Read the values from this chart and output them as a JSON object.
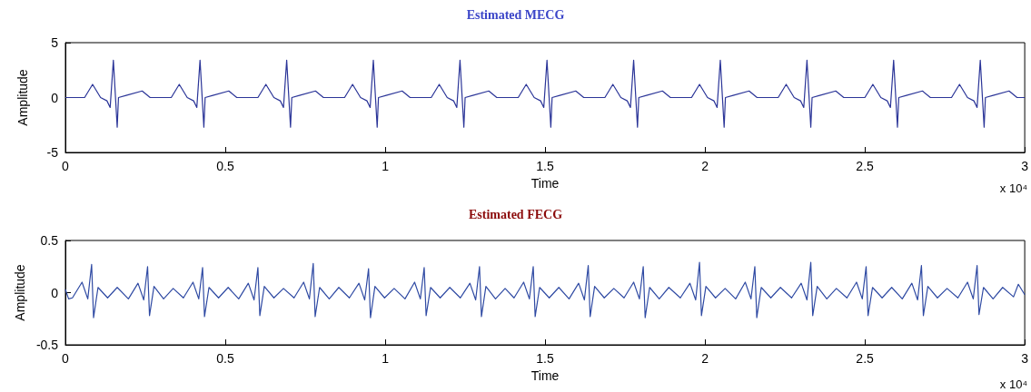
{
  "chart_data": [
    {
      "type": "line",
      "title": "Estimated MECG",
      "xlabel": "Time",
      "ylabel": "Amplitude",
      "annotations": [
        "x 10⁴"
      ],
      "xlim": [
        0,
        3
      ],
      "xticks": [
        0,
        0.5,
        1,
        1.5,
        2,
        2.5,
        3
      ],
      "ylim": [
        -5,
        5
      ],
      "yticks": [
        -5,
        0,
        5
      ],
      "grid": false,
      "marker": "none",
      "line_style": "solid",
      "series": [
        {
          "color": "#2b3598",
          "x": [
            0,
            0.06,
            0.085,
            0.11,
            0.13,
            0.14,
            0.15,
            0.162,
            0.166,
            0.19,
            0.24,
            0.265,
            0.331,
            0.356,
            0.381,
            0.401,
            0.411,
            0.421,
            0.433,
            0.437,
            0.461,
            0.511,
            0.536,
            0.602,
            0.627,
            0.652,
            0.672,
            0.682,
            0.692,
            0.704,
            0.708,
            0.732,
            0.782,
            0.807,
            0.873,
            0.898,
            0.923,
            0.943,
            0.953,
            0.963,
            0.975,
            0.979,
            1.003,
            1.053,
            1.078,
            1.144,
            1.169,
            1.194,
            1.214,
            1.224,
            1.234,
            1.246,
            1.25,
            1.274,
            1.324,
            1.349,
            1.416,
            1.441,
            1.466,
            1.486,
            1.496,
            1.506,
            1.518,
            1.522,
            1.546,
            1.596,
            1.621,
            1.687,
            1.712,
            1.737,
            1.757,
            1.767,
            1.777,
            1.789,
            1.793,
            1.817,
            1.867,
            1.892,
            1.958,
            1.983,
            2.008,
            2.028,
            2.038,
            2.048,
            2.06,
            2.064,
            2.088,
            2.138,
            2.163,
            2.229,
            2.254,
            2.279,
            2.299,
            2.309,
            2.319,
            2.331,
            2.335,
            2.359,
            2.409,
            2.434,
            2.5,
            2.525,
            2.55,
            2.57,
            2.58,
            2.59,
            2.602,
            2.606,
            2.63,
            2.68,
            2.705,
            2.771,
            2.796,
            2.821,
            2.841,
            2.851,
            2.861,
            2.873,
            2.877,
            2.901,
            2.951,
            2.976,
            3
          ],
          "values": [
            0,
            0,
            1.2,
            0,
            -0.3,
            -0.9,
            3.4,
            -2.7,
            0,
            0.2,
            0.6,
            0,
            0,
            1.2,
            0,
            -0.3,
            -0.9,
            3.4,
            -2.7,
            0,
            0.2,
            0.6,
            0,
            0,
            1.2,
            0,
            -0.3,
            -0.9,
            3.4,
            -2.7,
            0,
            0.2,
            0.6,
            0,
            0,
            1.2,
            0,
            -0.3,
            -0.9,
            3.4,
            -2.7,
            0,
            0.2,
            0.6,
            0,
            0,
            1.2,
            0,
            -0.3,
            -0.9,
            3.4,
            -2.7,
            0,
            0.2,
            0.6,
            0,
            0,
            1.2,
            0,
            -0.3,
            -0.9,
            3.4,
            -2.7,
            0,
            0.2,
            0.6,
            0,
            0,
            1.2,
            0,
            -0.3,
            -0.9,
            3.4,
            -2.7,
            0,
            0.2,
            0.6,
            0,
            0,
            1.2,
            0,
            -0.3,
            -0.9,
            3.4,
            -2.7,
            0,
            0.2,
            0.6,
            0,
            0,
            1.2,
            0,
            -0.3,
            -0.9,
            3.4,
            -2.7,
            0,
            0.2,
            0.6,
            0,
            0,
            1.2,
            0,
            -0.3,
            -0.9,
            3.4,
            -2.7,
            0,
            0.2,
            0.6,
            0,
            0,
            1.2,
            0,
            -0.3,
            -0.9,
            3.4,
            -2.7,
            0,
            0.2,
            0.6,
            0,
            0
          ]
        }
      ]
    },
    {
      "type": "line",
      "title": "Estimated FECG",
      "xlabel": "Time",
      "ylabel": "Amplitude",
      "annotations": [
        "x 10⁴"
      ],
      "xlim": [
        0,
        3
      ],
      "xticks": [
        0,
        0.5,
        1,
        1.5,
        2,
        2.5,
        3
      ],
      "ylim": [
        -0.5,
        0.5
      ],
      "yticks": [
        -0.5,
        0,
        0.5
      ],
      "grid": false,
      "marker": "none",
      "line_style": "solid",
      "series": [
        {
          "color": "#2f4aa3",
          "x": [
            0,
            0.01,
            0.022,
            0.052,
            0.07,
            0.082,
            0.088,
            0.102,
            0.132,
            0.162,
            0.197,
            0.227,
            0.245,
            0.257,
            0.263,
            0.277,
            0.307,
            0.337,
            0.369,
            0.399,
            0.417,
            0.429,
            0.435,
            0.449,
            0.479,
            0.509,
            0.542,
            0.572,
            0.59,
            0.602,
            0.608,
            0.622,
            0.652,
            0.682,
            0.715,
            0.745,
            0.763,
            0.775,
            0.781,
            0.795,
            0.825,
            0.855,
            0.888,
            0.918,
            0.936,
            0.948,
            0.954,
            0.968,
            0.998,
            1.028,
            1.062,
            1.092,
            1.11,
            1.122,
            1.128,
            1.142,
            1.172,
            1.202,
            1.235,
            1.265,
            1.283,
            1.295,
            1.301,
            1.315,
            1.345,
            1.375,
            1.403,
            1.433,
            1.451,
            1.463,
            1.469,
            1.483,
            1.513,
            1.543,
            1.575,
            1.605,
            1.623,
            1.635,
            1.641,
            1.655,
            1.685,
            1.715,
            1.747,
            1.777,
            1.795,
            1.807,
            1.813,
            1.827,
            1.857,
            1.887,
            1.923,
            1.953,
            1.971,
            1.983,
            1.989,
            2.003,
            2.033,
            2.063,
            2.096,
            2.126,
            2.144,
            2.156,
            2.162,
            2.176,
            2.206,
            2.236,
            2.271,
            2.301,
            2.319,
            2.331,
            2.337,
            2.351,
            2.381,
            2.411,
            2.444,
            2.474,
            2.492,
            2.504,
            2.51,
            2.524,
            2.554,
            2.584,
            2.617,
            2.647,
            2.665,
            2.677,
            2.683,
            2.697,
            2.727,
            2.757,
            2.791,
            2.821,
            2.839,
            2.851,
            2.857,
            2.871,
            2.901,
            2.931,
            2.965,
            2.98,
            3
          ],
          "values": [
            0.03,
            -0.06,
            -0.05,
            0.1,
            -0.06,
            0.27,
            -0.24,
            0.05,
            -0.05,
            0.05,
            -0.06,
            0.09,
            -0.07,
            0.25,
            -0.22,
            0.06,
            -0.06,
            0.04,
            -0.05,
            0.1,
            -0.06,
            0.24,
            -0.23,
            0.05,
            -0.05,
            0.05,
            -0.06,
            0.09,
            -0.07,
            0.24,
            -0.22,
            0.06,
            -0.05,
            0.04,
            -0.05,
            0.1,
            -0.06,
            0.28,
            -0.23,
            0.05,
            -0.06,
            0.05,
            -0.05,
            0.09,
            -0.07,
            0.23,
            -0.24,
            0.06,
            -0.05,
            0.04,
            -0.06,
            0.1,
            -0.06,
            0.24,
            -0.22,
            0.05,
            -0.05,
            0.05,
            -0.05,
            0.09,
            -0.07,
            0.25,
            -0.23,
            0.06,
            -0.06,
            0.04,
            -0.05,
            0.1,
            -0.06,
            0.25,
            -0.23,
            0.05,
            -0.05,
            0.05,
            -0.06,
            0.09,
            -0.07,
            0.26,
            -0.23,
            0.06,
            -0.05,
            0.04,
            -0.05,
            0.1,
            -0.06,
            0.25,
            -0.24,
            0.05,
            -0.06,
            0.05,
            -0.05,
            0.09,
            -0.07,
            0.29,
            -0.22,
            0.06,
            -0.05,
            0.04,
            -0.06,
            0.1,
            -0.06,
            0.25,
            -0.24,
            0.05,
            -0.05,
            0.05,
            -0.05,
            0.09,
            -0.07,
            0.29,
            -0.22,
            0.06,
            -0.06,
            0.04,
            -0.05,
            0.1,
            -0.06,
            0.25,
            -0.22,
            0.05,
            -0.05,
            0.05,
            -0.06,
            0.09,
            -0.07,
            0.26,
            -0.22,
            0.06,
            -0.05,
            0.04,
            -0.05,
            0.1,
            -0.06,
            0.26,
            -0.21,
            0.05,
            -0.06,
            0.05,
            -0.04,
            0.08,
            -0.02
          ]
        }
      ]
    }
  ]
}
